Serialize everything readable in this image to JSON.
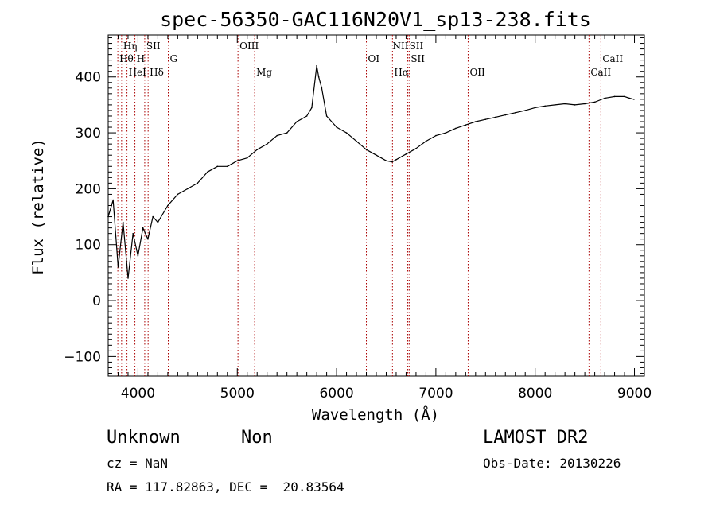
{
  "chart_data": {
    "type": "line",
    "title": "spec-56350-GAC116N20V1_sp13-238.fits",
    "xlabel": "Wavelength (Å)",
    "ylabel": "Flux (relative)",
    "xlim": [
      3700,
      9100
    ],
    "ylim": [
      -135,
      475
    ],
    "x_ticks": [
      4000,
      5000,
      6000,
      7000,
      8000,
      9000
    ],
    "x_tick_labels": [
      "4000",
      "5000",
      "6000",
      "7000",
      "8000",
      "9000"
    ],
    "y_ticks": [
      -100,
      0,
      100,
      200,
      300,
      400
    ],
    "y_tick_labels": [
      "−100",
      "0",
      "100",
      "200",
      "300",
      "400"
    ],
    "grid": false,
    "series": [
      {
        "color": "#000000",
        "x": [
          3700,
          3750,
          3800,
          3850,
          3900,
          3950,
          4000,
          4050,
          4100,
          4150,
          4200,
          4300,
          4400,
          4500,
          4600,
          4700,
          4800,
          4900,
          5000,
          5100,
          5200,
          5300,
          5400,
          5500,
          5600,
          5700,
          5750,
          5800,
          5820,
          5850,
          5900,
          6000,
          6100,
          6200,
          6300,
          6400,
          6500,
          6560,
          6600,
          6700,
          6800,
          6900,
          7000,
          7100,
          7200,
          7300,
          7400,
          7500,
          7600,
          7700,
          7800,
          7900,
          8000,
          8100,
          8200,
          8300,
          8400,
          8500,
          8600,
          8700,
          8800,
          8900,
          8950,
          8995
        ],
        "y": [
          150,
          180,
          60,
          140,
          40,
          120,
          80,
          130,
          110,
          150,
          140,
          170,
          190,
          200,
          210,
          230,
          240,
          240,
          250,
          255,
          270,
          280,
          295,
          300,
          320,
          330,
          345,
          420,
          400,
          380,
          330,
          310,
          300,
          285,
          270,
          260,
          250,
          248,
          252,
          262,
          272,
          285,
          295,
          300,
          308,
          314,
          320,
          324,
          328,
          332,
          336,
          340,
          345,
          348,
          350,
          352,
          350,
          352,
          355,
          362,
          365,
          365,
          362,
          360
        ]
      }
    ],
    "line_markers": [
      {
        "label": "Hη",
        "x": 3835,
        "row": 0
      },
      {
        "label": "Hθ",
        "x": 3797,
        "row": 1
      },
      {
        "label": "HeI",
        "x": 3889,
        "row": 2
      },
      {
        "label": "SII",
        "x": 4068,
        "row": 0
      },
      {
        "label": "H",
        "x": 3969,
        "row": 1
      },
      {
        "label": "Hδ",
        "x": 4102,
        "row": 2
      },
      {
        "label": "G",
        "x": 4305,
        "row": 1
      },
      {
        "label": "OIII",
        "x": 5007,
        "row": 0
      },
      {
        "label": "Mg",
        "x": 5175,
        "row": 2
      },
      {
        "label": "OI",
        "x": 6300,
        "row": 1
      },
      {
        "label": "NII",
        "x": 6548,
        "row": 0
      },
      {
        "label": "Hα",
        "x": 6563,
        "row": 2
      },
      {
        "label": "SII",
        "x": 6717,
        "row": 0
      },
      {
        "label": "SII",
        "x": 6731,
        "row": 1
      },
      {
        "label": "OII",
        "x": 7325,
        "row": 2
      },
      {
        "label": "CaII",
        "x": 8542,
        "row": 2
      },
      {
        "label": "CaII",
        "x": 8662,
        "row": 1
      }
    ]
  },
  "footer": {
    "class_label": "Unknown",
    "subclass_label": "Non",
    "survey": "LAMOST DR2",
    "cz": "cz = NaN",
    "obs_date": "Obs-Date: 20130226",
    "coords": "RA = 117.82863, DEC =  20.83564"
  },
  "colors": {
    "spectrum": "#000000",
    "line_marker": "#aa0000",
    "axes": "#000000"
  }
}
